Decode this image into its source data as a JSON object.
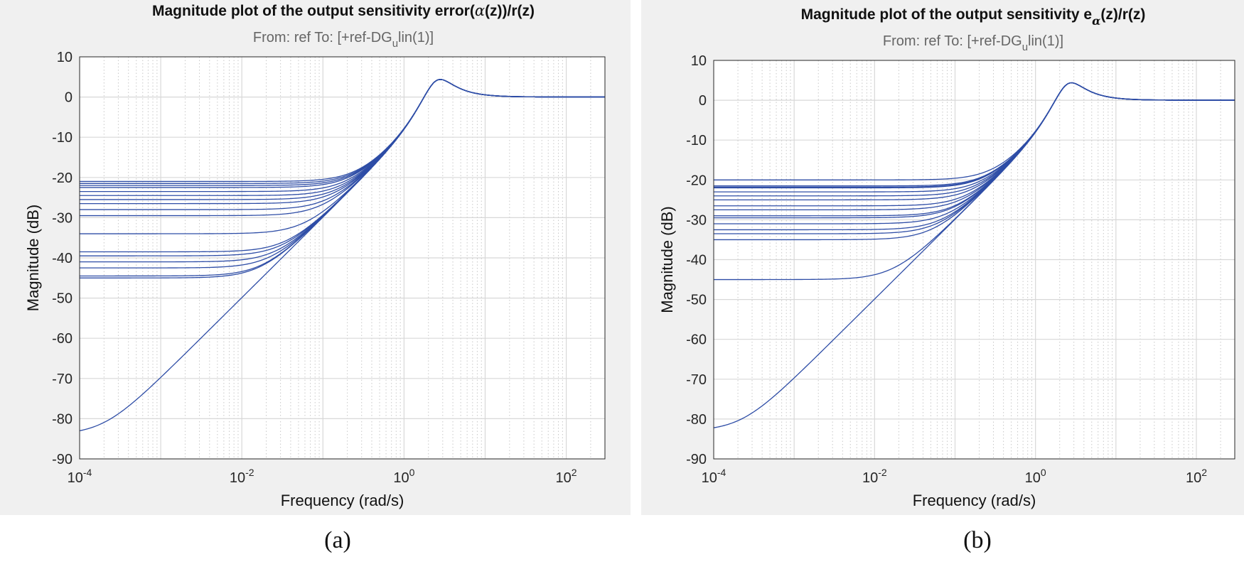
{
  "colors": {
    "line": "#2e4da6",
    "grid": "#d8d8d8",
    "minor_grid": "#c8c8c8",
    "panel_bg": "#f0f0f0",
    "plot_bg": "#ffffff",
    "text": "#262626",
    "subtitle": "#666666"
  },
  "captions": [
    "(a)",
    "(b)"
  ],
  "chart_data": [
    {
      "type": "line",
      "title_prefix": "Magnitude plot of the output sensitivity error(",
      "title_symbol": "α",
      "title_suffix": "(z))/r(z)",
      "subtitle_prefix": "From: ref  To: [+ref-DG",
      "subtitle_sub": "u",
      "subtitle_suffix": "lin(1)]",
      "xlabel": "Frequency  (rad/s)",
      "ylabel": "Magnitude (dB)",
      "xscale": "log",
      "xlim": [
        0.0001,
        300
      ],
      "ylim": [
        -90,
        10
      ],
      "yticks": [
        10,
        0,
        -10,
        -20,
        -30,
        -40,
        -50,
        -60,
        -70,
        -80,
        -90
      ],
      "xticks": [
        {
          "base": "10",
          "exp": "-4"
        },
        {
          "base": "10",
          "exp": "-2"
        },
        {
          "base": "10",
          "exp": "0"
        },
        {
          "base": "10",
          "exp": "2"
        }
      ],
      "grid": true,
      "model": "second-order sensitivity, resonance peak ≈ +3.5 dB near 3.5 rad/s, high-frequency gain 0 dB",
      "series_low_frequency_gain_db": [
        -21,
        -21.5,
        -22,
        -22.5,
        -23.5,
        -24.5,
        -25.5,
        -26.5,
        -28,
        -29.5,
        -34,
        -38.5,
        -39.5,
        -41,
        -42.5,
        -44.5,
        -45,
        -84
      ]
    },
    {
      "type": "line",
      "title_prefix": "Magnitude plot of the output sensitivity e",
      "title_symbol": "α",
      "title_suffix": "(z)/r(z)",
      "subtitle_prefix": "From: ref  To: [+ref-DG",
      "subtitle_sub": "u",
      "subtitle_suffix": "lin(1)]",
      "xlabel": "Frequency  (rad/s)",
      "ylabel": "Magnitude (dB)",
      "xscale": "log",
      "xlim": [
        0.0001,
        300
      ],
      "ylim": [
        -90,
        10
      ],
      "yticks": [
        10,
        0,
        -10,
        -20,
        -30,
        -40,
        -50,
        -60,
        -70,
        -80,
        -90
      ],
      "xticks": [
        {
          "base": "10",
          "exp": "-4"
        },
        {
          "base": "10",
          "exp": "-2"
        },
        {
          "base": "10",
          "exp": "0"
        },
        {
          "base": "10",
          "exp": "2"
        }
      ],
      "grid": true,
      "model": "second-order sensitivity, resonance peak ≈ +3.5 dB near 3.5 rad/s, high-frequency gain 0 dB",
      "series_low_frequency_gain_db": [
        -20,
        -21.5,
        -21.8,
        -22,
        -23,
        -24,
        -25,
        -26.5,
        -27.5,
        -29,
        -29.5,
        -31,
        -32.5,
        -33.5,
        -35,
        -45,
        -83
      ]
    }
  ]
}
